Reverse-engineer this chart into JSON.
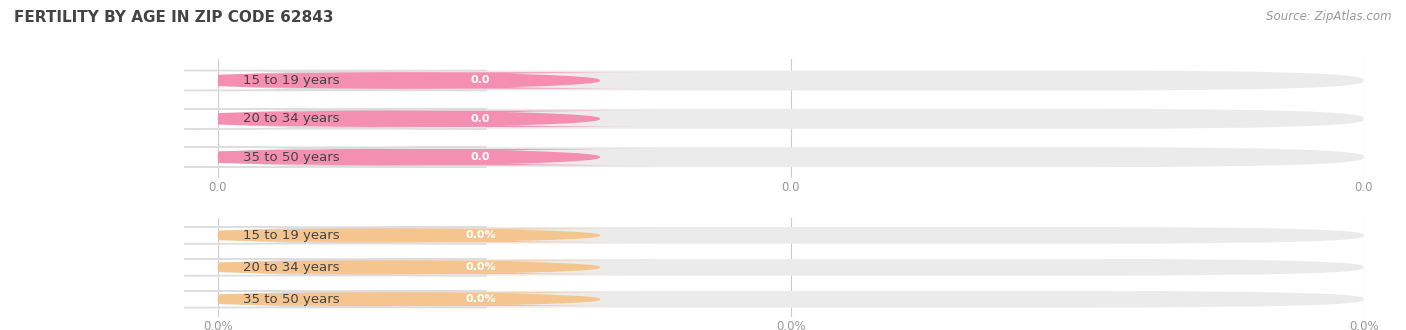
{
  "title": "FERTILITY BY AGE IN ZIP CODE 62843",
  "source": "Source: ZipAtlas.com",
  "categories": [
    "15 to 19 years",
    "20 to 34 years",
    "35 to 50 years"
  ],
  "group1_values": [
    0.0,
    0.0,
    0.0
  ],
  "group1_labels": [
    "0.0",
    "0.0",
    "0.0"
  ],
  "group1_color": "#f48fb1",
  "group2_values": [
    0.0,
    0.0,
    0.0
  ],
  "group2_labels": [
    "0.0%",
    "0.0%",
    "0.0%"
  ],
  "group2_color": "#f5c590",
  "bg_color": "#ffffff",
  "bar_bg_color": "#ebebeb",
  "bar_bg_color2": "#e8e8e8",
  "tick_label_color": "#999999",
  "title_color": "#444444",
  "source_color": "#999999",
  "label_text_color": "#444444",
  "value_label_color": "#ffffff",
  "x_tick_labels_top": [
    "0.0",
    "0.0",
    "0.0"
  ],
  "x_tick_labels_bot": [
    "0.0%",
    "0.0%",
    "0.0%"
  ],
  "title_fontsize": 11,
  "source_fontsize": 8.5,
  "cat_fontsize": 9.5,
  "val_fontsize": 8,
  "tick_fontsize": 8.5
}
